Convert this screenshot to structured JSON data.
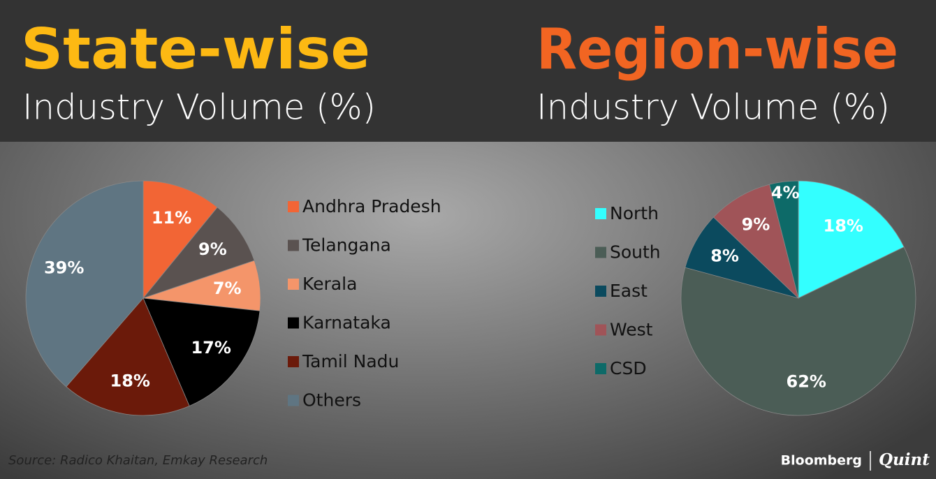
{
  "chart_data": [
    {
      "type": "pie",
      "title": "State-wise",
      "subtitle": "Industry Volume (%)",
      "title_color": "#fdb913",
      "categories": [
        "Andhra Pradesh",
        "Telangana",
        "Kerala",
        "Karnataka",
        "Tamil Nadu",
        "Others"
      ],
      "values": [
        11,
        9,
        7,
        17,
        18,
        39
      ],
      "value_labels": [
        "11%",
        "9%",
        "7%",
        "17%",
        "18%",
        "39%"
      ],
      "colors": [
        "#f26535",
        "#5a5250",
        "#f4956a",
        "#000000",
        "#6b1a0a",
        "#5f7582"
      ],
      "legend": "right"
    },
    {
      "type": "pie",
      "title": "Region-wise",
      "subtitle": "Industry Volume (%)",
      "title_color": "#f26522",
      "categories": [
        "North",
        "South",
        "East",
        "West",
        "CSD"
      ],
      "values": [
        18,
        62,
        8,
        9,
        4
      ],
      "value_labels": [
        "18%",
        "62%",
        "8%",
        "9%",
        "4%"
      ],
      "colors": [
        "#33ffff",
        "#4b5d56",
        "#0b4a5e",
        "#a05458",
        "#0d6a68"
      ],
      "legend": "left"
    }
  ],
  "source": "Source: Radico Khaitan, Emkay Research",
  "brand": [
    "Bloomberg",
    "Quint"
  ]
}
